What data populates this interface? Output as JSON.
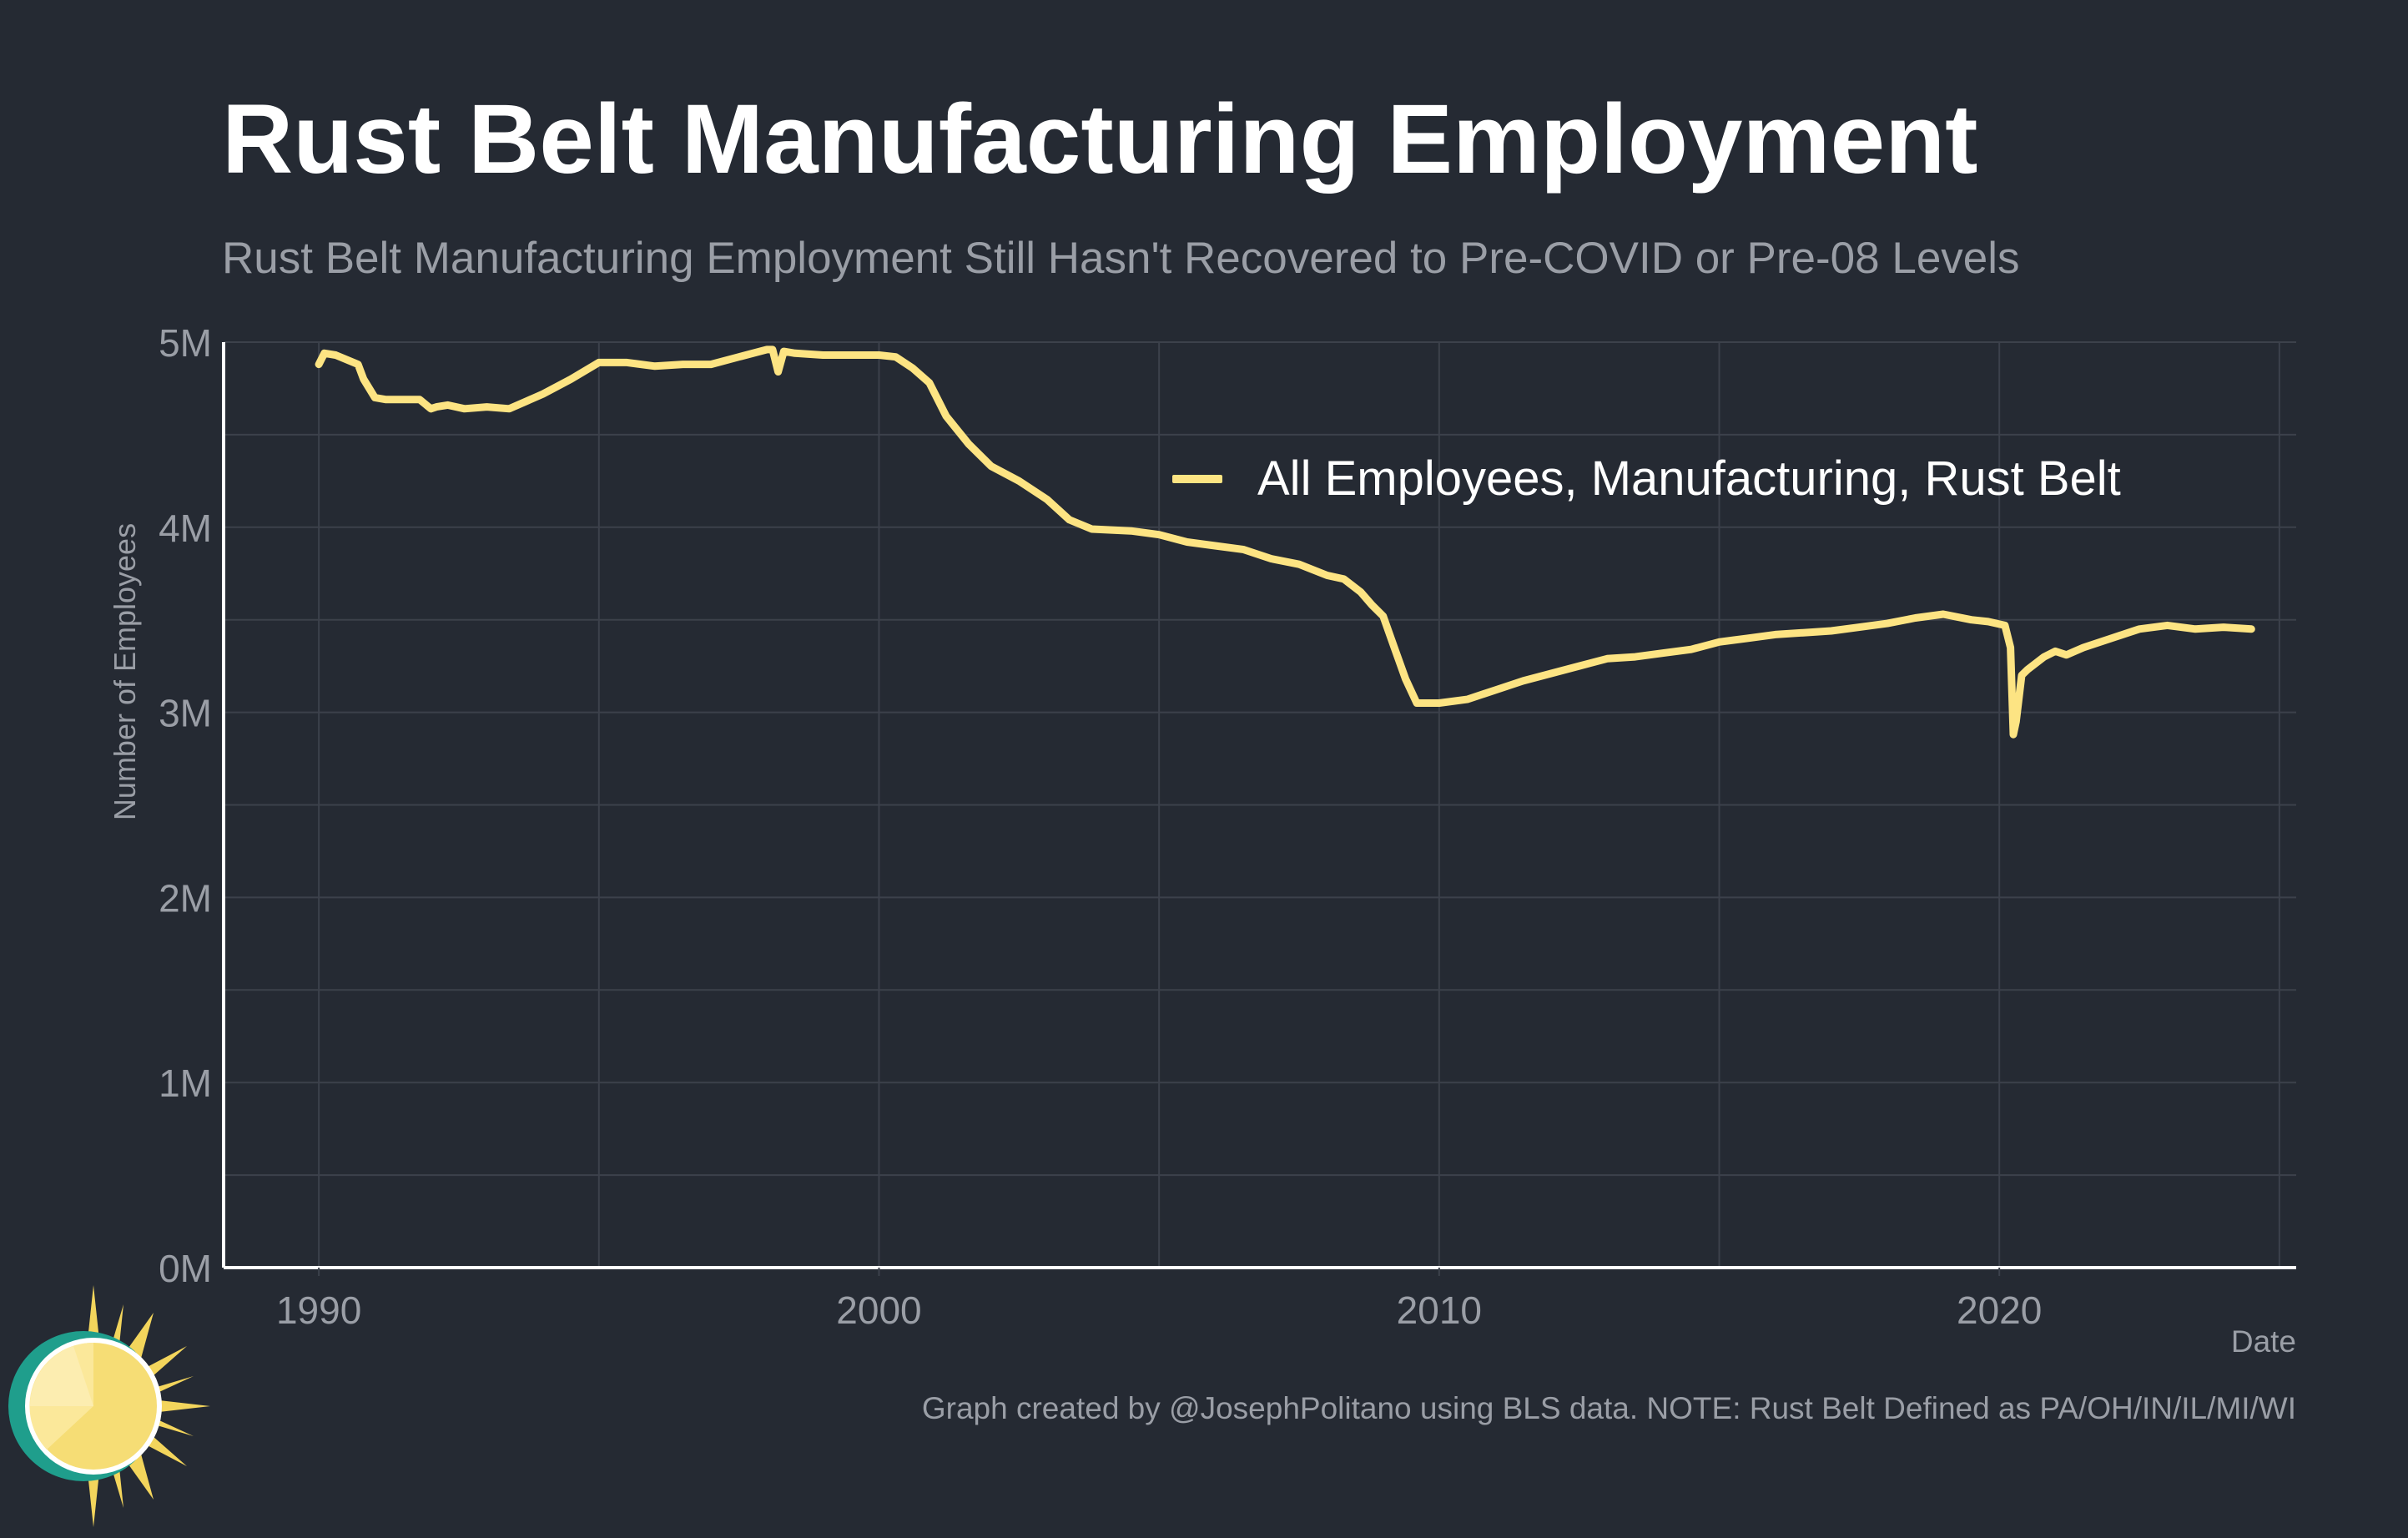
{
  "colors": {
    "background": "#252a33",
    "line": "#fde483",
    "grid": "#3c414b",
    "axis": "#ffffff",
    "muted_text": "#9a9ea6"
  },
  "caption": "Graph created by @JosephPolitano using BLS data. NOTE: Rust Belt Defined as PA/OH/IN/IL/MI/WI",
  "chart_data": {
    "type": "line",
    "title": "Rust Belt Manufacturing Employment",
    "subtitle": "Rust Belt Manufacturing Employment Still Hasn't Recovered to Pre-COVID or Pre-08 Levels",
    "xlabel": "Date",
    "ylabel": "Number of Employees",
    "xlim": [
      1988.3,
      2025.3
    ],
    "ylim": [
      0,
      5000000
    ],
    "x_ticks": [
      1990,
      2000,
      2010,
      2020
    ],
    "x_tick_labels": [
      "1990",
      "2000",
      "2010",
      "2020"
    ],
    "y_ticks": [
      0,
      1000000,
      2000000,
      3000000,
      4000000,
      5000000
    ],
    "y_tick_labels": [
      "0M",
      "1M",
      "2M",
      "3M",
      "4M",
      "5M"
    ],
    "grid": true,
    "legend_position": "top-right",
    "series": [
      {
        "name": "All Employees, Manufacturing, Rust Belt",
        "x": [
          1990.0,
          1990.1,
          1990.3,
          1990.7,
          1990.8,
          1991.0,
          1991.2,
          1991.5,
          1991.8,
          1992.0,
          1992.1,
          1992.3,
          1992.6,
          1993.0,
          1993.4,
          1993.7,
          1994.0,
          1994.5,
          1995.0,
          1995.5,
          1996.0,
          1996.5,
          1997.0,
          1997.5,
          1998.0,
          1998.1,
          1998.2,
          1998.3,
          1998.5,
          1999.0,
          1999.5,
          2000.0,
          2000.3,
          2000.6,
          2000.9,
          2001.2,
          2001.6,
          2002.0,
          2002.5,
          2003.0,
          2003.4,
          2003.8,
          2004.5,
          2005.0,
          2005.5,
          2006.0,
          2006.5,
          2007.0,
          2007.5,
          2008.0,
          2008.3,
          2008.6,
          2008.8,
          2009.0,
          2009.2,
          2009.4,
          2009.6,
          2010.0,
          2010.5,
          2011.0,
          2011.5,
          2012.0,
          2012.5,
          2013.0,
          2013.5,
          2014.0,
          2014.5,
          2015.0,
          2015.5,
          2016.0,
          2016.5,
          2017.0,
          2017.5,
          2018.0,
          2018.5,
          2019.0,
          2019.5,
          2019.8,
          2020.1,
          2020.2,
          2020.25,
          2020.3,
          2020.4,
          2020.5,
          2020.8,
          2021.0,
          2021.2,
          2021.5,
          2022.0,
          2022.5,
          2023.0,
          2023.5,
          2024.0,
          2024.5
        ],
        "values": [
          4880000,
          4940000,
          4930000,
          4880000,
          4800000,
          4700000,
          4690000,
          4690000,
          4690000,
          4640000,
          4650000,
          4660000,
          4640000,
          4650000,
          4640000,
          4680000,
          4720000,
          4800000,
          4890000,
          4890000,
          4870000,
          4880000,
          4880000,
          4920000,
          4960000,
          4960000,
          4840000,
          4950000,
          4940000,
          4930000,
          4930000,
          4930000,
          4920000,
          4860000,
          4780000,
          4600000,
          4450000,
          4330000,
          4250000,
          4150000,
          4040000,
          3990000,
          3980000,
          3960000,
          3920000,
          3900000,
          3880000,
          3830000,
          3800000,
          3740000,
          3720000,
          3650000,
          3580000,
          3520000,
          3350000,
          3180000,
          3050000,
          3050000,
          3070000,
          3120000,
          3170000,
          3210000,
          3250000,
          3290000,
          3300000,
          3320000,
          3340000,
          3380000,
          3400000,
          3420000,
          3430000,
          3440000,
          3460000,
          3480000,
          3510000,
          3530000,
          3500000,
          3490000,
          3470000,
          3350000,
          2880000,
          2950000,
          3200000,
          3230000,
          3300000,
          3330000,
          3310000,
          3350000,
          3400000,
          3450000,
          3470000,
          3450000,
          3460000,
          3450000
        ]
      }
    ]
  }
}
